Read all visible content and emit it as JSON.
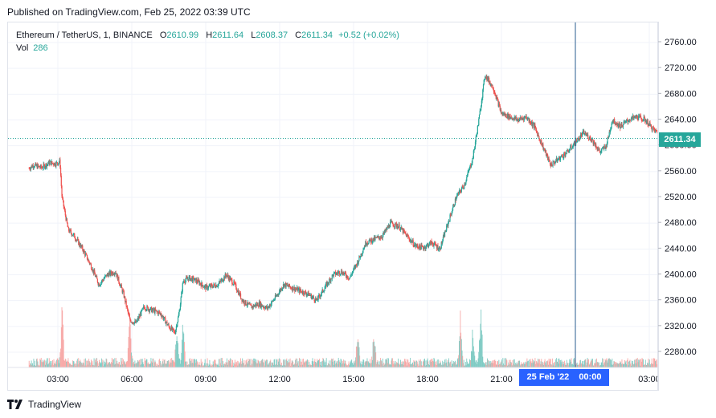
{
  "published": "Published on TradingView.com, Feb 25, 2022 03:39 UTC",
  "legend": {
    "symbol": "Ethereum / TetherUS, 1, BINANCE",
    "open_label": "O",
    "open": "2610.99",
    "high_label": "H",
    "high": "2611.64",
    "low_label": "L",
    "low": "2608.37",
    "close_label": "C",
    "close": "2611.34",
    "change": "+0.52 (+0.02%)",
    "vol_label": "Vol",
    "vol": "286"
  },
  "last_price": "2611.34",
  "crosshair_time": {
    "date": "25 Feb '22",
    "time": "00:00"
  },
  "footer": {
    "brand": "TradingView",
    "logo_icon": "tradingview-logo-icon"
  },
  "colors": {
    "up": "#26a69a",
    "down": "#ef5350",
    "vol_up": "#80cbc4",
    "vol_down": "#f7a9a7",
    "grid": "#f0f3fa",
    "crosshair": "#2962ff"
  },
  "chart_data": {
    "type": "candlestick",
    "symbol": "Ethereum / TetherUS",
    "interval": "1",
    "exchange": "BINANCE",
    "y_ticks": [
      "2760.00",
      "2720.00",
      "2680.00",
      "2640.00",
      "2600.00",
      "2560.00",
      "2520.00",
      "2480.00",
      "2440.00",
      "2400.00",
      "2360.00",
      "2320.00",
      "2280.00"
    ],
    "x_ticks": [
      "03:00",
      "06:00",
      "09:00",
      "12:00",
      "15:00",
      "18:00",
      "21:00",
      "03:00"
    ],
    "x_start": "Feb 24, 01:50",
    "x_end": "Feb 25, 03:39",
    "ylim": [
      2250,
      2780
    ],
    "grid": true,
    "price_path": [
      [
        "Feb 24 01:50",
        2565
      ],
      [
        "02:00",
        2570
      ],
      [
        "02:20",
        2566
      ],
      [
        "02:40",
        2574
      ],
      [
        "02:55",
        2572
      ],
      [
        "03:05",
        2576
      ],
      [
        "03:10",
        2520
      ],
      [
        "03:25",
        2470
      ],
      [
        "03:40",
        2460
      ],
      [
        "04:00",
        2440
      ],
      [
        "04:20",
        2415
      ],
      [
        "04:40",
        2385
      ],
      [
        "05:00",
        2400
      ],
      [
        "05:20",
        2405
      ],
      [
        "05:40",
        2370
      ],
      [
        "05:55",
        2330
      ],
      [
        "06:10",
        2325
      ],
      [
        "06:30",
        2350
      ],
      [
        "06:50",
        2345
      ],
      [
        "07:10",
        2340
      ],
      [
        "07:30",
        2320
      ],
      [
        "07:45",
        2310
      ],
      [
        "07:55",
        2340
      ],
      [
        "08:05",
        2390
      ],
      [
        "08:20",
        2395
      ],
      [
        "08:40",
        2390
      ],
      [
        "09:00",
        2380
      ],
      [
        "09:30",
        2385
      ],
      [
        "09:50",
        2400
      ],
      [
        "10:10",
        2385
      ],
      [
        "10:30",
        2360
      ],
      [
        "10:50",
        2350
      ],
      [
        "11:10",
        2355
      ],
      [
        "11:30",
        2348
      ],
      [
        "11:50",
        2365
      ],
      [
        "12:10",
        2385
      ],
      [
        "12:30",
        2380
      ],
      [
        "12:50",
        2375
      ],
      [
        "13:10",
        2370
      ],
      [
        "13:30",
        2360
      ],
      [
        "13:50",
        2380
      ],
      [
        "14:10",
        2400
      ],
      [
        "14:30",
        2405
      ],
      [
        "14:50",
        2395
      ],
      [
        "15:10",
        2420
      ],
      [
        "15:30",
        2450
      ],
      [
        "15:50",
        2455
      ],
      [
        "16:10",
        2460
      ],
      [
        "16:30",
        2480
      ],
      [
        "16:50",
        2475
      ],
      [
        "17:10",
        2460
      ],
      [
        "17:30",
        2445
      ],
      [
        "17:50",
        2442
      ],
      [
        "18:10",
        2450
      ],
      [
        "18:30",
        2440
      ],
      [
        "18:50",
        2480
      ],
      [
        "19:10",
        2520
      ],
      [
        "19:30",
        2540
      ],
      [
        "19:50",
        2580
      ],
      [
        "20:05",
        2640
      ],
      [
        "20:20",
        2710
      ],
      [
        "20:40",
        2690
      ],
      [
        "21:00",
        2650
      ],
      [
        "21:20",
        2645
      ],
      [
        "21:40",
        2640
      ],
      [
        "22:00",
        2645
      ],
      [
        "22:20",
        2630
      ],
      [
        "22:40",
        2600
      ],
      [
        "23:00",
        2570
      ],
      [
        "23:20",
        2580
      ],
      [
        "23:40",
        2590
      ],
      [
        "Feb 25 00:00",
        2605
      ],
      [
        "00:20",
        2620
      ],
      [
        "00:40",
        2610
      ],
      [
        "01:00",
        2590
      ],
      [
        "01:15",
        2600
      ],
      [
        "01:30",
        2640
      ],
      [
        "01:50",
        2630
      ],
      [
        "02:10",
        2640
      ],
      [
        "02:30",
        2645
      ],
      [
        "02:50",
        2640
      ],
      [
        "03:10",
        2625
      ],
      [
        "03:39",
        2611
      ]
    ],
    "volume_spikes": [
      [
        "03:10",
        1.0
      ],
      [
        "05:55",
        0.8
      ],
      [
        "07:50",
        0.6
      ],
      [
        "08:05",
        0.8
      ],
      [
        "15:10",
        0.6
      ],
      [
        "15:50",
        0.5
      ],
      [
        "19:20",
        0.9
      ],
      [
        "19:50",
        0.55
      ],
      [
        "20:10",
        1.0
      ]
    ],
    "last_price": 2611.34,
    "crosshair": "25 Feb '22 00:00"
  }
}
